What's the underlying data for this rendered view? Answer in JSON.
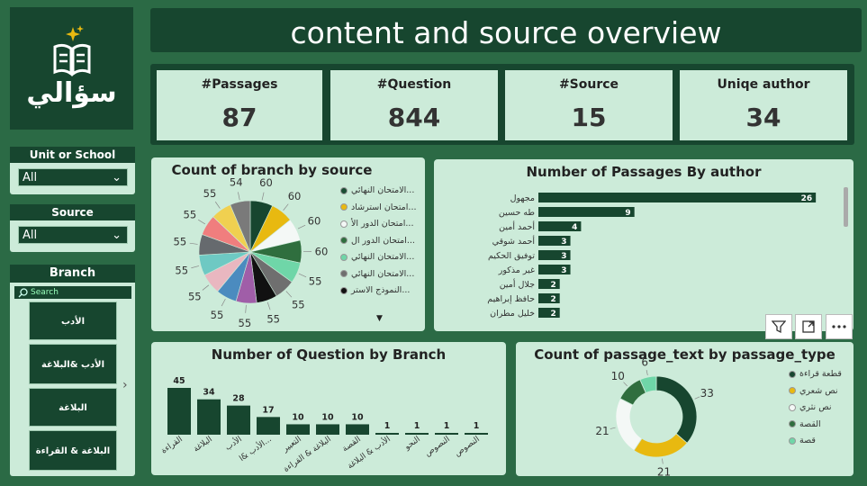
{
  "app": {
    "logo_text": "سؤالي",
    "title": "content and source overview"
  },
  "kpis": [
    {
      "label": "#Passages",
      "value": "87"
    },
    {
      "label": "#Question",
      "value": "844"
    },
    {
      "label": "#Source",
      "value": "15"
    },
    {
      "label": "Uniqe author",
      "value": "34"
    }
  ],
  "slicers": {
    "unit": {
      "title": "Unit or School",
      "value": "All"
    },
    "source": {
      "title": "Source",
      "value": "All"
    },
    "branch": {
      "title": "Branch",
      "search_placeholder": "Search",
      "items": [
        "الأدب",
        "الأدب &البلاغة",
        "البلاغة",
        "البلاغة & القراءة"
      ]
    }
  },
  "pie_by_source": {
    "title": "Count of branch by source",
    "legend": [
      {
        "label": "الامتحان النهائي...",
        "color": "#1b4d33"
      },
      {
        "label": "امتحان استرشاد...",
        "color": "#e8b910"
      },
      {
        "label": "امتحان الدور الأ...",
        "color": "#f4f8f6"
      },
      {
        "label": "امتحان الدور ال...",
        "color": "#2f6e3e"
      },
      {
        "label": "الامتحان النهائي...",
        "color": "#6fd6a8"
      },
      {
        "label": "الامتحان النهائي...",
        "color": "#6f6f6f"
      },
      {
        "label": "النموذج الاستر...",
        "color": "#111111"
      }
    ]
  },
  "authors_chart": {
    "title": "Number of Passages By author"
  },
  "questions_chart": {
    "title": "Number of Question by Branch"
  },
  "donut_chart": {
    "title": "Count of passage_text by passage_type",
    "legend": [
      {
        "label": "قطعة قراءة",
        "color": "#17462f"
      },
      {
        "label": "نص شعري",
        "color": "#e8b910"
      },
      {
        "label": "نص نثري",
        "color": "#f4f8f6"
      },
      {
        "label": "القصة",
        "color": "#2f6e3e"
      },
      {
        "label": "قصة",
        "color": "#6fd6a8"
      }
    ]
  },
  "chart_data": [
    {
      "type": "pie",
      "title": "Count of branch by source",
      "values": [
        60,
        60,
        60,
        60,
        55,
        55,
        55,
        55,
        55,
        55,
        55,
        55,
        55,
        55,
        54
      ],
      "colors": [
        "#17462f",
        "#e8b910",
        "#f4f8f6",
        "#2f6e3e",
        "#6fd6a8",
        "#6f6f6f",
        "#111111",
        "#a05ea8",
        "#4b8bbf",
        "#e9b7c0",
        "#6ec9c3",
        "#666a6e",
        "#f07e7e",
        "#f0d050",
        "#7a7a7a"
      ]
    },
    {
      "type": "bar",
      "orientation": "horizontal",
      "title": "Number of Passages By author",
      "categories": [
        "مجهول",
        "طه حسين",
        "أحمد أمين",
        "أحمد شوقي",
        "توفيق الحكيم",
        "غير مذكور",
        "جلال أمين",
        "حافظ إبراهيم",
        "خليل مطران"
      ],
      "values": [
        26,
        9,
        4,
        3,
        3,
        3,
        2,
        2,
        2
      ],
      "xlim": [
        0,
        27
      ]
    },
    {
      "type": "bar",
      "title": "Number of Question by Branch",
      "categories": [
        "القراءة",
        "البلاغة",
        "الأدب",
        "الأدب &ا...",
        "التعبير",
        "البلاغة & القراءة",
        "القصة",
        "الأدب & البلاغة",
        "النحو",
        "النصوص",
        "النصوص"
      ],
      "values": [
        45,
        34,
        28,
        17,
        10,
        10,
        10,
        1,
        1,
        1,
        1
      ],
      "ylim": [
        0,
        45
      ]
    },
    {
      "type": "pie",
      "subtype": "donut",
      "title": "Count of passage_text by passage_type",
      "categories": [
        "قطعة قراءة",
        "نص شعري",
        "نص نثري",
        "القصة",
        "قصة"
      ],
      "values": [
        33,
        21,
        21,
        10,
        6
      ],
      "colors": [
        "#17462f",
        "#e8b910",
        "#f4f8f6",
        "#2f6e3e",
        "#6fd6a8"
      ]
    }
  ]
}
